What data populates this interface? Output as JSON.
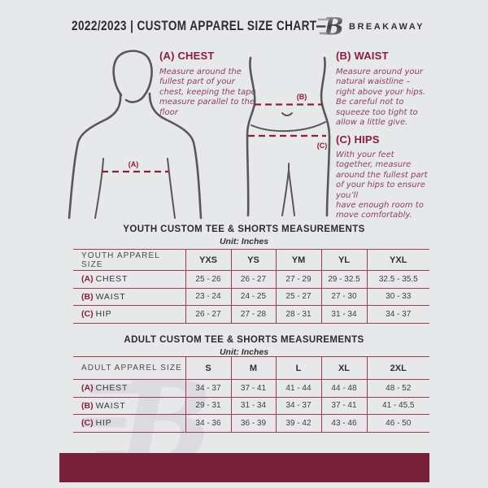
{
  "theme": {
    "bg": "#e7e8ea",
    "ink": "#2d2d2f",
    "accent": "#8c1c40",
    "accentSoft": "#8d4160",
    "tableLine": "#9b3a57",
    "bar": "#76203c",
    "figure": "#58585a",
    "watermark": "#dcdce0"
  },
  "header": {
    "title": "2022/2023  |  CUSTOM APPAREL SIZE CHART",
    "brand": "BREAKAWAY",
    "monogram_letter": "B"
  },
  "figures": {
    "chest_label": "(A)",
    "waist_label": "(B)",
    "hips_label": "(C)"
  },
  "measure_guide": {
    "chest": {
      "heading": "(A) CHEST",
      "body": "Measure around the fullest part of your chest, keeping the tape measure parallel to the floor"
    },
    "waist": {
      "heading": "(B) WAIST",
      "body": "Measure around your natural waistline – right above your hips. Be careful not to squeeze too tight to allow a little give."
    },
    "hips": {
      "heading": "(C) HIPS",
      "body": "With your feet together, measure around the fullest part of your hips to ensure you’ll\nhave enough room to move comfortably."
    }
  },
  "youth": {
    "title": "YOUTH CUSTOM TEE & SHORTS MEASUREMENTS",
    "unit": "Unit: Inches",
    "header": [
      "YOUTH APPAREL SIZE",
      "YXS",
      "YS",
      "YM",
      "YL",
      "YXL"
    ],
    "rows": [
      {
        "prefix": "(A)",
        "label": "CHEST",
        "values": [
          "25 - 26",
          "26 - 27",
          "27 - 29",
          "29 - 32.5",
          "32.5 - 35.5"
        ]
      },
      {
        "prefix": "(B)",
        "label": "WAIST",
        "values": [
          "23 - 24",
          "24 - 25",
          "25 - 27",
          "27 - 30",
          "30 - 33"
        ]
      },
      {
        "prefix": "(C)",
        "label": "HIP",
        "values": [
          "26 - 27",
          "27 - 28",
          "28 - 31",
          "31 - 34",
          "34 - 37"
        ]
      }
    ]
  },
  "adult": {
    "title": "ADULT CUSTOM TEE & SHORTS MEASUREMENTS",
    "unit": "Unit: Inches",
    "header": [
      "ADULT APPAREL SIZE",
      "S",
      "M",
      "L",
      "XL",
      "2XL"
    ],
    "rows": [
      {
        "prefix": "(A)",
        "label": "CHEST",
        "values": [
          "34 - 37",
          "37 - 41",
          "41 - 44",
          "44 - 48",
          "48 - 52"
        ]
      },
      {
        "prefix": "(B)",
        "label": "WAIST",
        "values": [
          "29 - 31",
          "31 - 34",
          "34 - 37",
          "37 - 41",
          "41 - 45.5"
        ]
      },
      {
        "prefix": "(C)",
        "label": "HIP",
        "values": [
          "34 - 36",
          "36 - 39",
          "39 - 42",
          "43 - 46",
          "46 - 50"
        ]
      }
    ]
  }
}
